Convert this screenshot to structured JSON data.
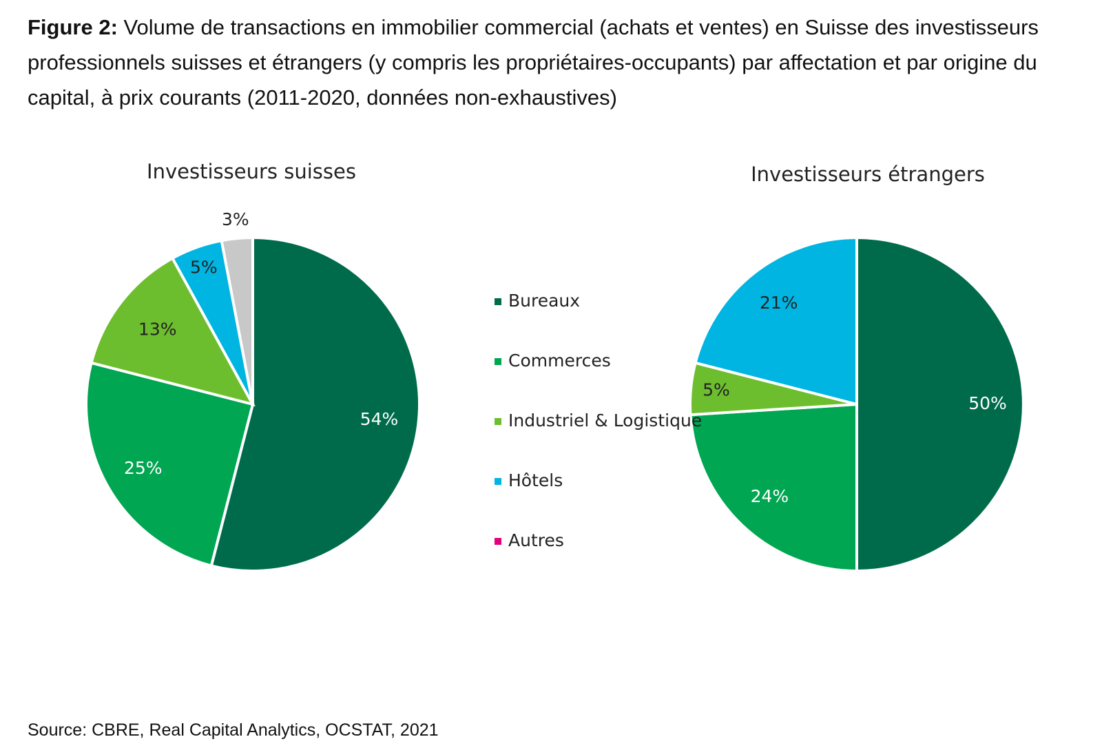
{
  "figure": {
    "title_lead": "Figure 2:",
    "title_text": " Volume de transactions en immobilier commercial (achats et ventes) en Suisse des investisseurs professionnels suisses et étrangers (y compris les propriétaires-occupants) par affectation et par origine du capital, à prix courants (2011-2020, données non-exhaustives)",
    "source": "Source: CBRE, Real Capital Analytics, OCSTAT, 2021"
  },
  "colors": {
    "Bureaux": "#006b4a",
    "Commerces": "#00a651",
    "Industriel & Logistique": "#6dbe2e",
    "Hôtels": "#00b5e2",
    "Autres": "#e6007e",
    "unlabeled_slice": "#c8c8c8"
  },
  "chart_data": [
    {
      "type": "pie",
      "title": "Investisseurs suisses",
      "slices": [
        {
          "category": "Bureaux",
          "value": 54,
          "label": "54%"
        },
        {
          "category": "Commerces",
          "value": 25,
          "label": "25%"
        },
        {
          "category": "Industriel & Logistique",
          "value": 13,
          "label": "13%"
        },
        {
          "category": "Hôtels",
          "value": 5,
          "label": "5%"
        },
        {
          "category": "",
          "value": 3,
          "label": "3%"
        }
      ]
    },
    {
      "type": "pie",
      "title": "Investisseurs étrangers",
      "slices": [
        {
          "category": "Bureaux",
          "value": 50,
          "label": "50%"
        },
        {
          "category": "Commerces",
          "value": 24,
          "label": "24%"
        },
        {
          "category": "Industriel & Logistique",
          "value": 5,
          "label": "5%"
        },
        {
          "category": "Hôtels",
          "value": 21,
          "label": "21%"
        }
      ]
    }
  ],
  "legend": [
    {
      "label": "Bureaux",
      "color": "#006b4a"
    },
    {
      "label": "Commerces",
      "color": "#00a651"
    },
    {
      "label": "Industriel & Logistique",
      "color": "#6dbe2e"
    },
    {
      "label": "Hôtels",
      "color": "#00b5e2"
    },
    {
      "label": "Autres",
      "color": "#e6007e"
    }
  ]
}
